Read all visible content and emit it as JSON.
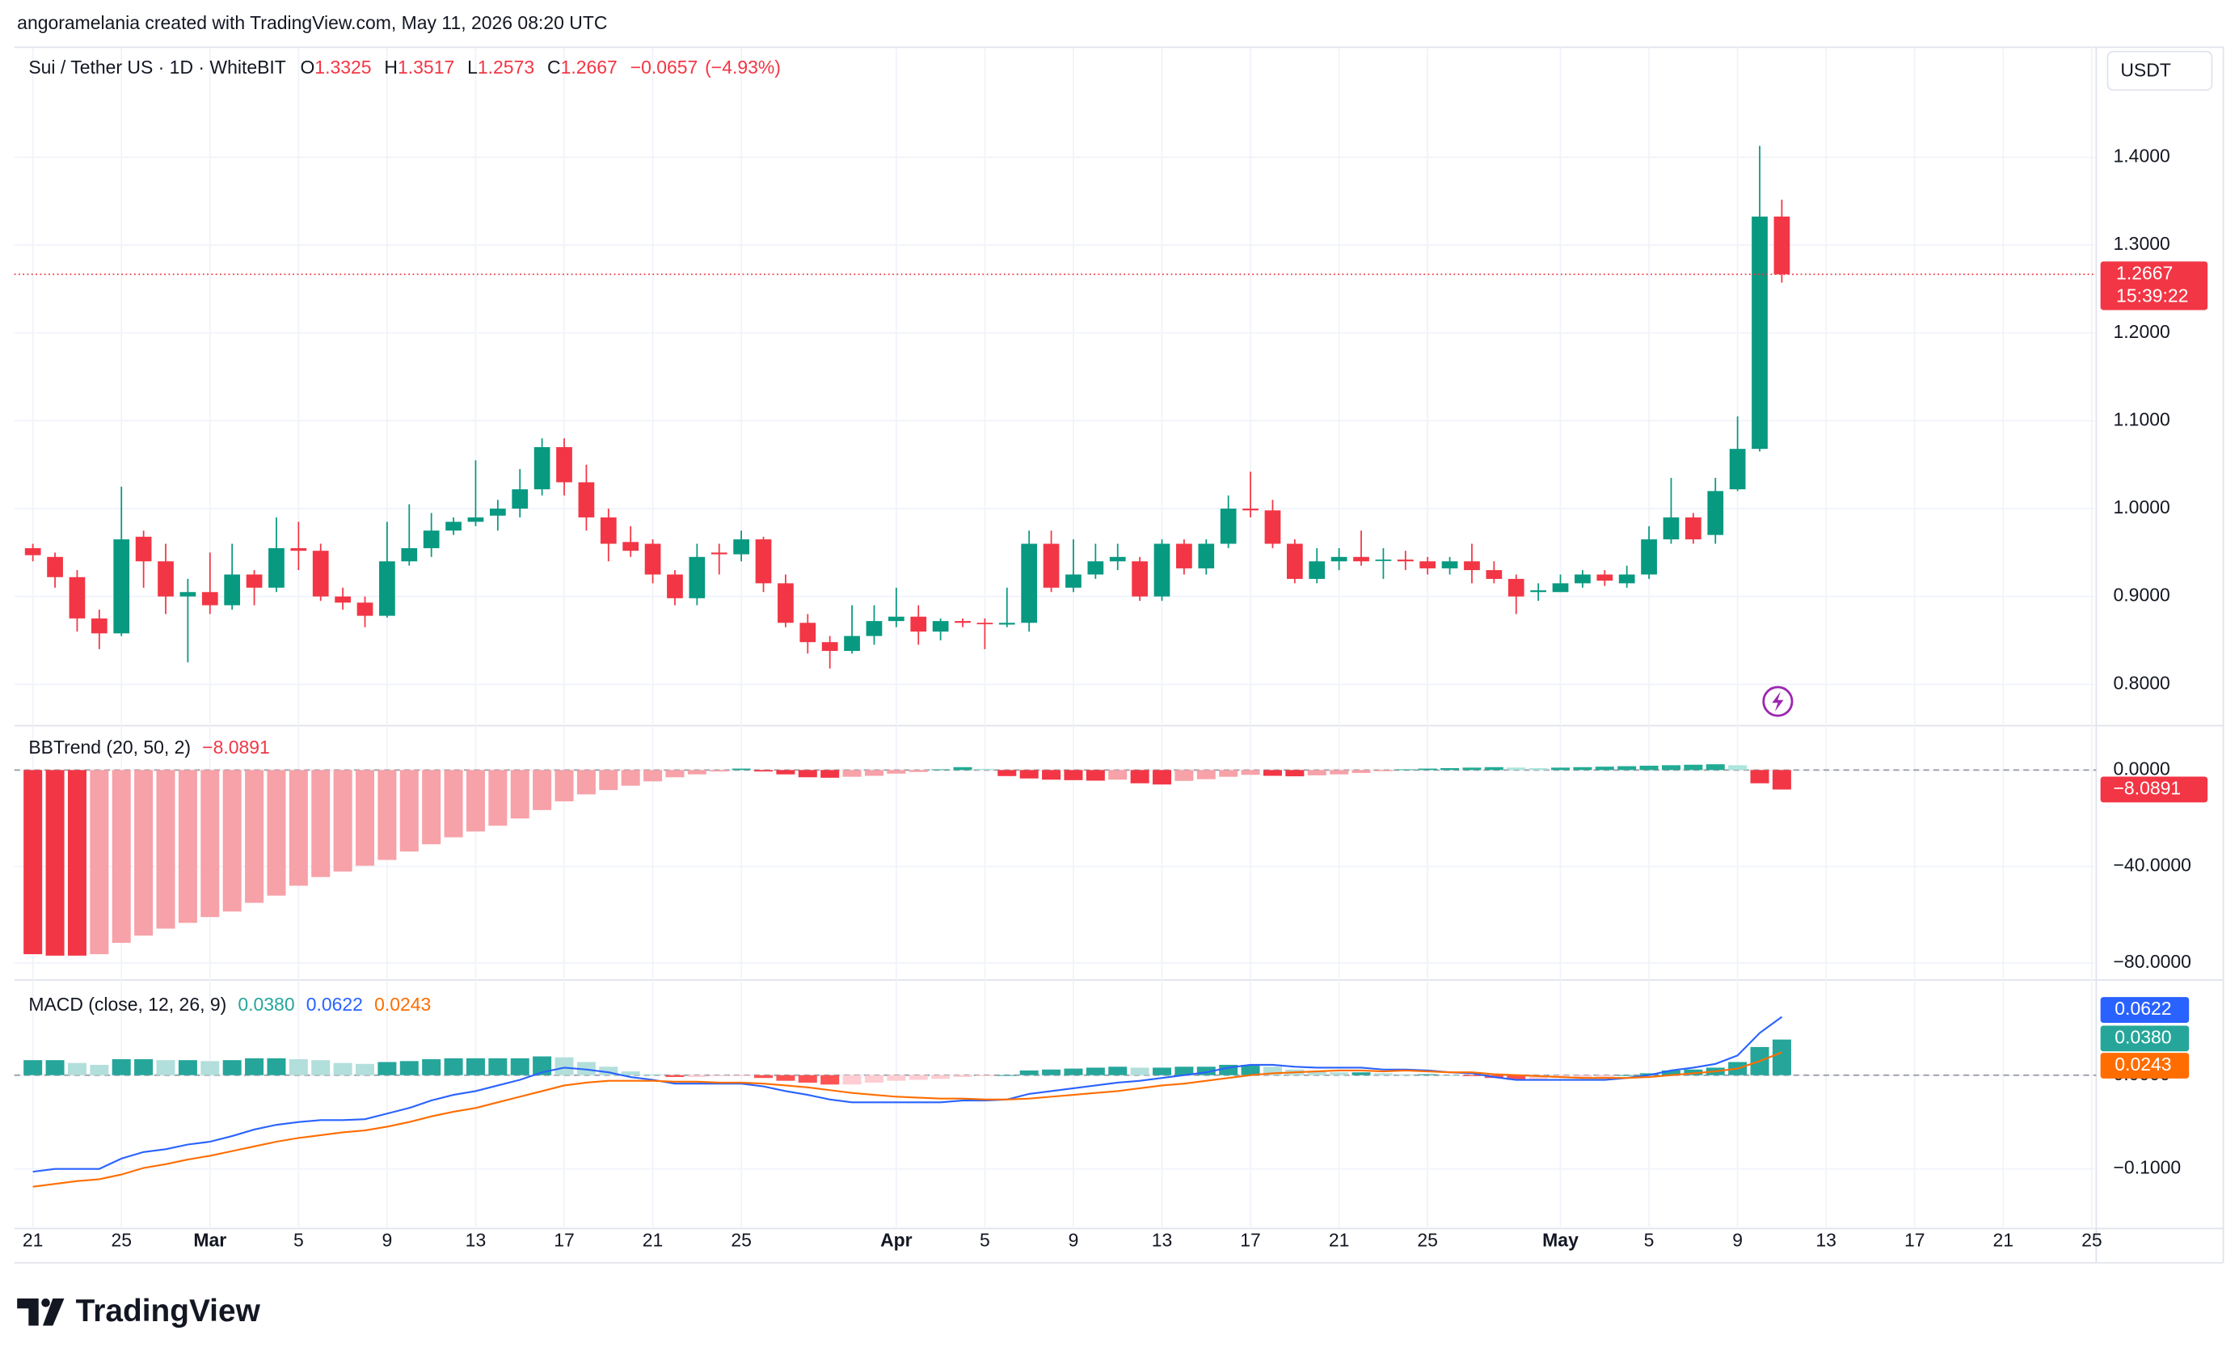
{
  "header": {
    "attribution": "angoramelania created with TradingView.com, May 11, 2026 08:20 UTC",
    "brand": "TradingView"
  },
  "chart_data": [
    {
      "type": "candlestick",
      "title": "Sui / Tether US · 1D · WhiteBIT",
      "ohlc_letters": [
        "O",
        "H",
        "L",
        "C"
      ],
      "change": "−0.0657",
      "change_percent": "(−4.93%)",
      "currency": "USDT",
      "countdown": "15:39:22",
      "x": [
        0,
        1,
        2,
        3,
        4,
        5,
        6,
        7,
        8,
        9,
        10,
        11,
        12,
        13,
        14,
        15,
        16,
        17,
        18,
        19,
        20,
        21,
        22,
        23,
        24,
        25,
        26,
        27,
        28,
        29,
        30,
        31,
        32,
        33,
        34,
        35,
        36,
        37,
        38,
        39,
        40,
        41,
        42,
        43,
        44,
        45,
        46,
        47,
        48,
        49,
        50,
        51,
        52,
        53,
        54,
        55,
        56,
        57,
        58,
        59,
        60,
        61,
        62,
        63,
        64,
        65,
        66,
        67,
        68,
        69,
        70,
        71,
        72,
        73,
        74,
        75,
        76,
        77,
        78,
        79
      ],
      "open": [
        0.955,
        0.945,
        0.922,
        0.875,
        0.858,
        0.968,
        0.94,
        0.9,
        0.905,
        0.89,
        0.925,
        0.91,
        0.955,
        0.952,
        0.9,
        0.893,
        0.878,
        0.94,
        0.955,
        0.975,
        0.985,
        0.992,
        1.0,
        1.022,
        1.07,
        1.03,
        0.99,
        0.962,
        0.96,
        0.925,
        0.898,
        0.95,
        0.948,
        0.965,
        0.915,
        0.87,
        0.848,
        0.838,
        0.855,
        0.872,
        0.877,
        0.86,
        0.872,
        0.87,
        0.868,
        0.87,
        0.96,
        0.91,
        0.925,
        0.94,
        0.94,
        0.9,
        0.96,
        0.932,
        0.96,
        1.0,
        0.998,
        0.96,
        0.92,
        0.94,
        0.945,
        0.941,
        0.942,
        0.94,
        0.932,
        0.94,
        0.93,
        0.92,
        0.905,
        0.905,
        0.915,
        0.925,
        0.915,
        0.925,
        0.965,
        0.99,
        0.97,
        1.022,
        1.068,
        1.3325
      ],
      "high": [
        0.96,
        0.95,
        0.93,
        0.885,
        1.025,
        0.975,
        0.96,
        0.92,
        0.95,
        0.96,
        0.93,
        0.99,
        0.985,
        0.96,
        0.91,
        0.9,
        0.985,
        1.005,
        0.995,
        0.99,
        1.055,
        1.01,
        1.045,
        1.08,
        1.08,
        1.05,
        1.0,
        0.98,
        0.965,
        0.93,
        0.96,
        0.96,
        0.975,
        0.968,
        0.925,
        0.88,
        0.855,
        0.89,
        0.89,
        0.91,
        0.89,
        0.875,
        0.875,
        0.875,
        0.91,
        0.975,
        0.975,
        0.965,
        0.96,
        0.96,
        0.945,
        0.965,
        0.965,
        0.965,
        1.015,
        1.042,
        1.01,
        0.965,
        0.955,
        0.955,
        0.975,
        0.955,
        0.952,
        0.945,
        0.945,
        0.96,
        0.94,
        0.925,
        0.915,
        0.925,
        0.93,
        0.93,
        0.935,
        0.98,
        1.035,
        0.995,
        1.035,
        1.105,
        1.413,
        1.3517
      ],
      "low": [
        0.94,
        0.91,
        0.86,
        0.84,
        0.855,
        0.91,
        0.88,
        0.825,
        0.88,
        0.885,
        0.89,
        0.905,
        0.93,
        0.895,
        0.885,
        0.865,
        0.876,
        0.935,
        0.945,
        0.97,
        0.98,
        0.975,
        0.99,
        1.015,
        1.015,
        0.975,
        0.94,
        0.945,
        0.915,
        0.89,
        0.89,
        0.925,
        0.94,
        0.905,
        0.865,
        0.835,
        0.818,
        0.835,
        0.845,
        0.865,
        0.845,
        0.85,
        0.865,
        0.84,
        0.865,
        0.86,
        0.905,
        0.905,
        0.92,
        0.93,
        0.895,
        0.895,
        0.925,
        0.925,
        0.955,
        0.99,
        0.955,
        0.915,
        0.915,
        0.93,
        0.935,
        0.92,
        0.93,
        0.925,
        0.925,
        0.915,
        0.915,
        0.88,
        0.895,
        0.905,
        0.91,
        0.912,
        0.91,
        0.92,
        0.96,
        0.96,
        0.96,
        1.02,
        1.065,
        1.2573
      ],
      "close": [
        0.947,
        0.922,
        0.875,
        0.858,
        0.965,
        0.94,
        0.9,
        0.905,
        0.89,
        0.925,
        0.91,
        0.955,
        0.952,
        0.9,
        0.893,
        0.878,
        0.94,
        0.955,
        0.975,
        0.985,
        0.99,
        1.0,
        1.022,
        1.07,
        1.03,
        0.99,
        0.96,
        0.952,
        0.925,
        0.898,
        0.945,
        0.948,
        0.965,
        0.915,
        0.87,
        0.848,
        0.838,
        0.855,
        0.872,
        0.877,
        0.86,
        0.872,
        0.87,
        0.869,
        0.87,
        0.96,
        0.91,
        0.925,
        0.94,
        0.945,
        0.9,
        0.96,
        0.932,
        0.96,
        1.0,
        0.998,
        0.96,
        0.92,
        0.94,
        0.945,
        0.94,
        0.942,
        0.94,
        0.932,
        0.94,
        0.93,
        0.92,
        0.9,
        0.907,
        0.915,
        0.925,
        0.918,
        0.925,
        0.965,
        0.99,
        0.965,
        1.02,
        1.068,
        1.3325,
        1.2667
      ],
      "up_color": "#089981",
      "down_color": "#f23645",
      "grid": true,
      "xlim": [
        -0.84,
        93.2
      ],
      "xticks": [
        {
          "value": 0,
          "label": "21"
        },
        {
          "value": 4,
          "label": "25"
        },
        {
          "value": 8,
          "label": "Mar"
        },
        {
          "value": 12,
          "label": "5"
        },
        {
          "value": 16,
          "label": "9"
        },
        {
          "value": 20,
          "label": "13"
        },
        {
          "value": 24,
          "label": "17"
        },
        {
          "value": 28,
          "label": "21"
        },
        {
          "value": 32,
          "label": "25"
        },
        {
          "value": 39,
          "label": "Apr"
        },
        {
          "value": 43,
          "label": "5"
        },
        {
          "value": 47,
          "label": "9"
        },
        {
          "value": 51,
          "label": "13"
        },
        {
          "value": 55,
          "label": "17"
        },
        {
          "value": 59,
          "label": "21"
        },
        {
          "value": 63,
          "label": "25"
        },
        {
          "value": 69,
          "label": "May"
        },
        {
          "value": 73,
          "label": "5"
        },
        {
          "value": 77,
          "label": "9"
        },
        {
          "value": 81,
          "label": "13"
        },
        {
          "value": 85,
          "label": "17"
        },
        {
          "value": 89,
          "label": "21"
        },
        {
          "value": 93,
          "label": "25"
        }
      ],
      "ylim": [
        0.7545,
        1.522
      ],
      "yticks": [
        {
          "value": 0.8,
          "label": "0.8000"
        },
        {
          "value": 0.9,
          "label": "0.9000"
        },
        {
          "value": 1.0,
          "label": "1.0000"
        },
        {
          "value": 1.1,
          "label": "1.1000"
        },
        {
          "value": 1.2,
          "label": "1.2000"
        },
        {
          "value": 1.3,
          "label": "1.3000"
        },
        {
          "value": 1.4,
          "label": "1.4000"
        }
      ]
    },
    {
      "type": "bar",
      "title": "BBTrend (20, 50, 2)",
      "values": [
        -76.4,
        -77.0,
        -77.0,
        -76.4,
        -71.7,
        -68.7,
        -65.8,
        -63.4,
        -61.0,
        -58.7,
        -55.1,
        -52.1,
        -48.0,
        -44.4,
        -42.1,
        -39.7,
        -37.3,
        -33.8,
        -30.8,
        -27.9,
        -25.5,
        -23.1,
        -20.1,
        -16.6,
        -13.0,
        -10.1,
        -8.3,
        -6.5,
        -4.7,
        -3.0,
        -1.8,
        -0.6,
        0.6,
        -0.6,
        -1.8,
        -3.0,
        -3.2,
        -2.8,
        -2.4,
        -1.5,
        -0.8,
        0.3,
        1.2,
        0.5,
        -2.5,
        -3.5,
        -4.0,
        -4.2,
        -4.4,
        -4.0,
        -5.5,
        -6.0,
        -4.5,
        -3.8,
        -2.8,
        -2.0,
        -2.4,
        -2.6,
        -2.2,
        -1.8,
        -1.2,
        -0.5,
        0.3,
        0.6,
        0.8,
        1.0,
        1.2,
        1.0,
        0.8,
        1.0,
        1.2,
        1.4,
        1.6,
        1.8,
        2.0,
        2.2,
        2.4,
        2.0,
        -5.5,
        -8.0891
      ],
      "value_labels": {
        "79": "−8.0891"
      },
      "colors": {
        "down_falling": "#f23645",
        "down_rising": "#f7a1a8",
        "up_rising": "#22ab94",
        "up_falling": "#ace5dc"
      },
      "ylim": [
        -86.5,
        17.2
      ],
      "yticks": [
        {
          "value": -80,
          "label": "−80.0000"
        },
        {
          "value": -40,
          "label": "−40.0000"
        },
        {
          "value": 0,
          "label": "0.0000"
        }
      ]
    },
    {
      "type": "macd",
      "title": "MACD (close, 12, 26, 9)",
      "histogram": {
        "values": [
          0.016,
          0.016,
          0.013,
          0.011,
          0.017,
          0.017,
          0.016,
          0.016,
          0.015,
          0.016,
          0.018,
          0.018,
          0.017,
          0.016,
          0.013,
          0.012,
          0.014,
          0.015,
          0.017,
          0.018,
          0.018,
          0.018,
          0.018,
          0.02,
          0.019,
          0.014,
          0.009,
          0.004,
          0.001,
          -0.002,
          -0.002,
          -0.001,
          -0.001,
          -0.003,
          -0.006,
          -0.008,
          -0.01,
          -0.01,
          -0.008,
          -0.006,
          -0.005,
          -0.004,
          -0.002,
          -0.001,
          0.0,
          0.005,
          0.006,
          0.007,
          0.008,
          0.009,
          0.008,
          0.008,
          0.009,
          0.009,
          0.011,
          0.011,
          0.009,
          0.006,
          0.004,
          0.003,
          0.003,
          0.002,
          0.001,
          0.001,
          0.0,
          -0.001,
          -0.003,
          -0.005,
          -0.004,
          -0.003,
          -0.002,
          -0.002,
          0.0,
          0.002,
          0.005,
          0.006,
          0.008,
          0.014,
          0.03,
          0.038
        ],
        "value_labels": {
          "79": "0.0380"
        },
        "colors": {
          "up_rising": "#26a69a",
          "up_falling": "#b2dfdb",
          "down_falling": "#ff5252",
          "down_rising": "#ffcdd2"
        }
      },
      "macd": {
        "color": "#2962ff",
        "values": [
          -0.103,
          -0.1,
          -0.1,
          -0.1,
          -0.089,
          -0.082,
          -0.079,
          -0.074,
          -0.071,
          -0.065,
          -0.058,
          -0.053,
          -0.05,
          -0.048,
          -0.048,
          -0.047,
          -0.041,
          -0.035,
          -0.027,
          -0.021,
          -0.017,
          -0.011,
          -0.005,
          0.003,
          0.008,
          0.006,
          0.003,
          -0.002,
          -0.005,
          -0.009,
          -0.009,
          -0.009,
          -0.009,
          -0.012,
          -0.017,
          -0.021,
          -0.026,
          -0.029,
          -0.029,
          -0.029,
          -0.029,
          -0.029,
          -0.027,
          -0.027,
          -0.026,
          -0.02,
          -0.017,
          -0.014,
          -0.011,
          -0.008,
          -0.006,
          -0.003,
          0.0,
          0.003,
          0.008,
          0.011,
          0.011,
          0.009,
          0.008,
          0.008,
          0.008,
          0.006,
          0.006,
          0.005,
          0.003,
          0.002,
          -0.002,
          -0.005,
          -0.005,
          -0.005,
          -0.005,
          -0.005,
          -0.003,
          0.0,
          0.005,
          0.008,
          0.012,
          0.021,
          0.045,
          0.0622
        ]
      },
      "signal": {
        "color": "#ff6d00",
        "values": [
          -0.119,
          -0.116,
          -0.113,
          -0.111,
          -0.106,
          -0.099,
          -0.095,
          -0.09,
          -0.086,
          -0.081,
          -0.076,
          -0.071,
          -0.067,
          -0.064,
          -0.061,
          -0.059,
          -0.055,
          -0.05,
          -0.044,
          -0.039,
          -0.035,
          -0.029,
          -0.023,
          -0.017,
          -0.011,
          -0.008,
          -0.006,
          -0.006,
          -0.006,
          -0.007,
          -0.007,
          -0.008,
          -0.008,
          -0.009,
          -0.011,
          -0.013,
          -0.016,
          -0.019,
          -0.021,
          -0.023,
          -0.024,
          -0.025,
          -0.025,
          -0.026,
          -0.026,
          -0.025,
          -0.023,
          -0.021,
          -0.019,
          -0.017,
          -0.014,
          -0.011,
          -0.009,
          -0.006,
          -0.003,
          0.0,
          0.002,
          0.003,
          0.004,
          0.005,
          0.005,
          0.004,
          0.005,
          0.004,
          0.003,
          0.003,
          0.001,
          0.0,
          -0.001,
          -0.002,
          -0.003,
          -0.003,
          -0.003,
          -0.002,
          0.0,
          0.002,
          0.004,
          0.007,
          0.015,
          0.0243
        ]
      },
      "ylim": [
        -0.1636,
        0.0985
      ],
      "yticks": [
        {
          "value": -0.1,
          "label": "−0.1000"
        },
        {
          "value": 0,
          "label": "0.0000"
        }
      ]
    }
  ]
}
